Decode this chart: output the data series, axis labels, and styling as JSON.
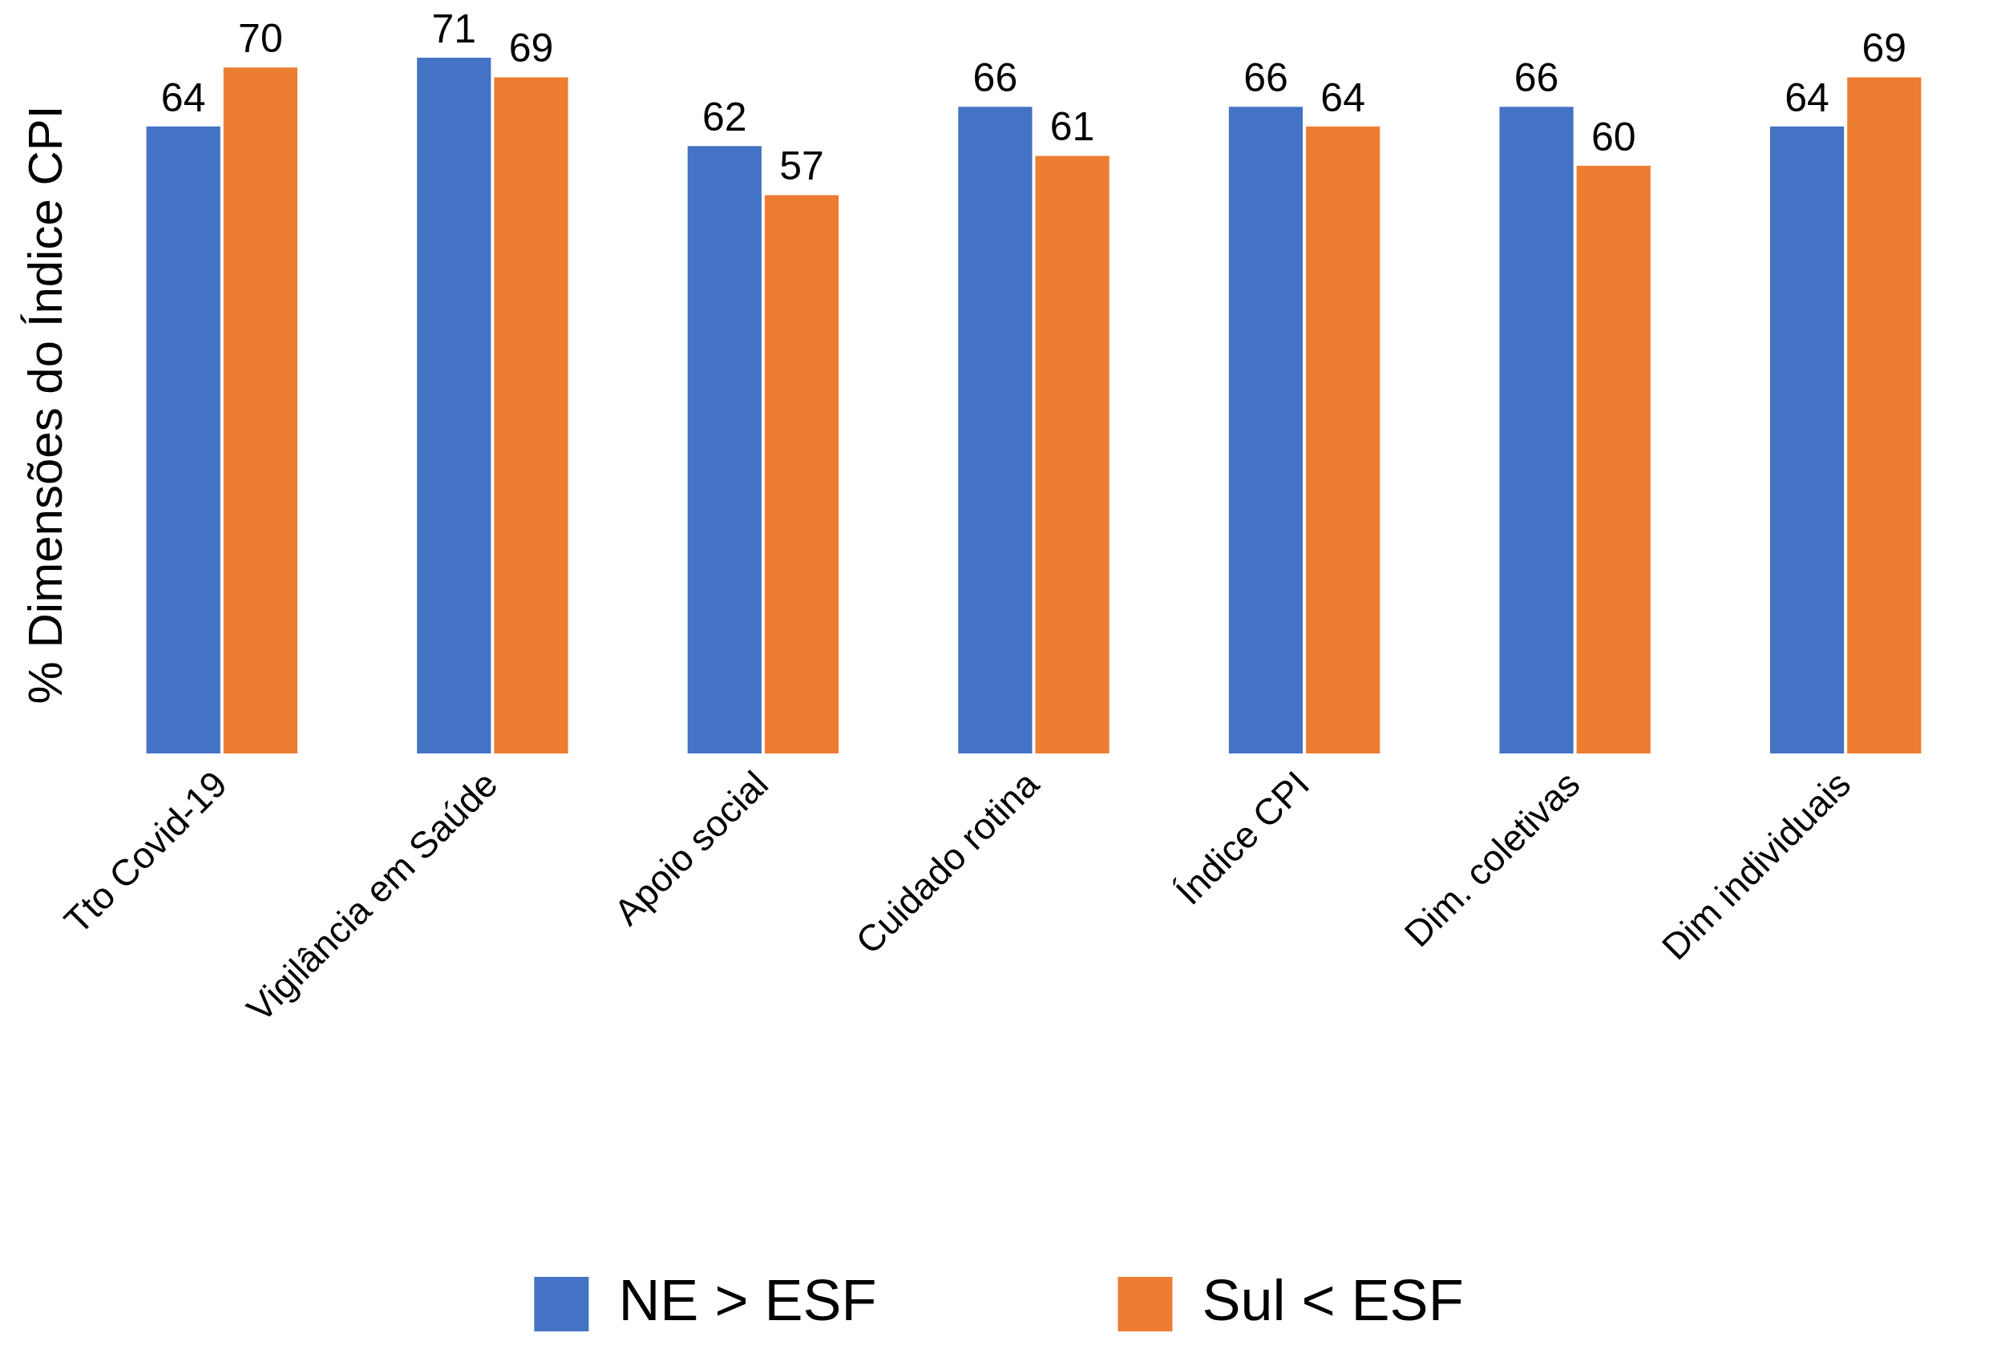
{
  "chart_data": {
    "type": "bar",
    "ylabel": "% Dimensões do Índice CPI",
    "categories": [
      "Tto Covid-19",
      "Vigilância em Saúde",
      "Apoio social",
      "Cuidado rotina",
      "Índice CPI",
      "Dim. coletivas",
      "Dim individuais"
    ],
    "series": [
      {
        "name": "NE > ESF",
        "color": "#4472c4",
        "values": [
          64,
          71,
          62,
          66,
          66,
          66,
          64
        ]
      },
      {
        "name": "Sul < ESF",
        "color": "#ed7d31",
        "values": [
          70,
          69,
          57,
          61,
          64,
          60,
          69
        ]
      }
    ],
    "data_labels": true,
    "grid": false,
    "legend": "bottom"
  }
}
